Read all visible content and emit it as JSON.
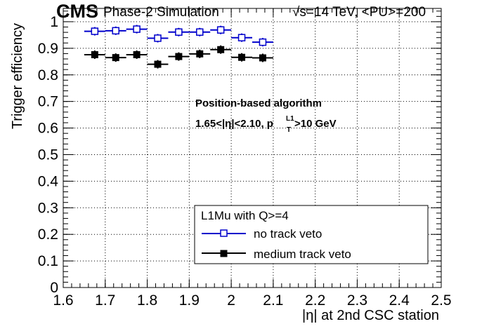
{
  "header": {
    "experiment": "CMS",
    "subtitle": "Phase-2 Simulation",
    "energy": "√s=14 TeV, <PU>=200"
  },
  "annotation": {
    "line1": "Position-based algorithm",
    "line2_prefix": "1.65<|η|<2.10, p",
    "line2_sup": "L1",
    "line2_sub": "T",
    "line2_suffix": ">10 GeV"
  },
  "legend": {
    "title": "L1Mu with Q>=4",
    "placement": "bottom-right"
  },
  "colors": {
    "no_track_veto": "#0000cc",
    "medium_track_veto": "#000000"
  },
  "chart_data": {
    "type": "scatter",
    "title": "",
    "xlabel": "|η| at 2nd CSC station",
    "ylabel": "Trigger efficiency",
    "xlim": [
      1.6,
      2.5
    ],
    "ylim": [
      0,
      1.05
    ],
    "grid": true,
    "xticks": [
      "1.6",
      "1.7",
      "1.8",
      "1.9",
      "2",
      "2.1",
      "2.2",
      "2.3",
      "2.4",
      "2.5"
    ],
    "yticks": [
      "0",
      "0.1",
      "0.2",
      "0.3",
      "0.4",
      "0.5",
      "0.6",
      "0.7",
      "0.8",
      "0.9",
      "1"
    ],
    "bin_width": 0.05,
    "x": [
      1.675,
      1.725,
      1.775,
      1.825,
      1.875,
      1.925,
      1.975,
      2.025,
      2.075
    ],
    "series": [
      {
        "name": "no track veto",
        "marker": "open-square",
        "values": [
          0.964,
          0.966,
          0.972,
          0.938,
          0.961,
          0.961,
          0.969,
          0.94,
          0.923
        ]
      },
      {
        "name": "medium track veto",
        "marker": "filled-square",
        "values": [
          0.876,
          0.865,
          0.876,
          0.84,
          0.869,
          0.879,
          0.895,
          0.866,
          0.864
        ]
      }
    ]
  }
}
